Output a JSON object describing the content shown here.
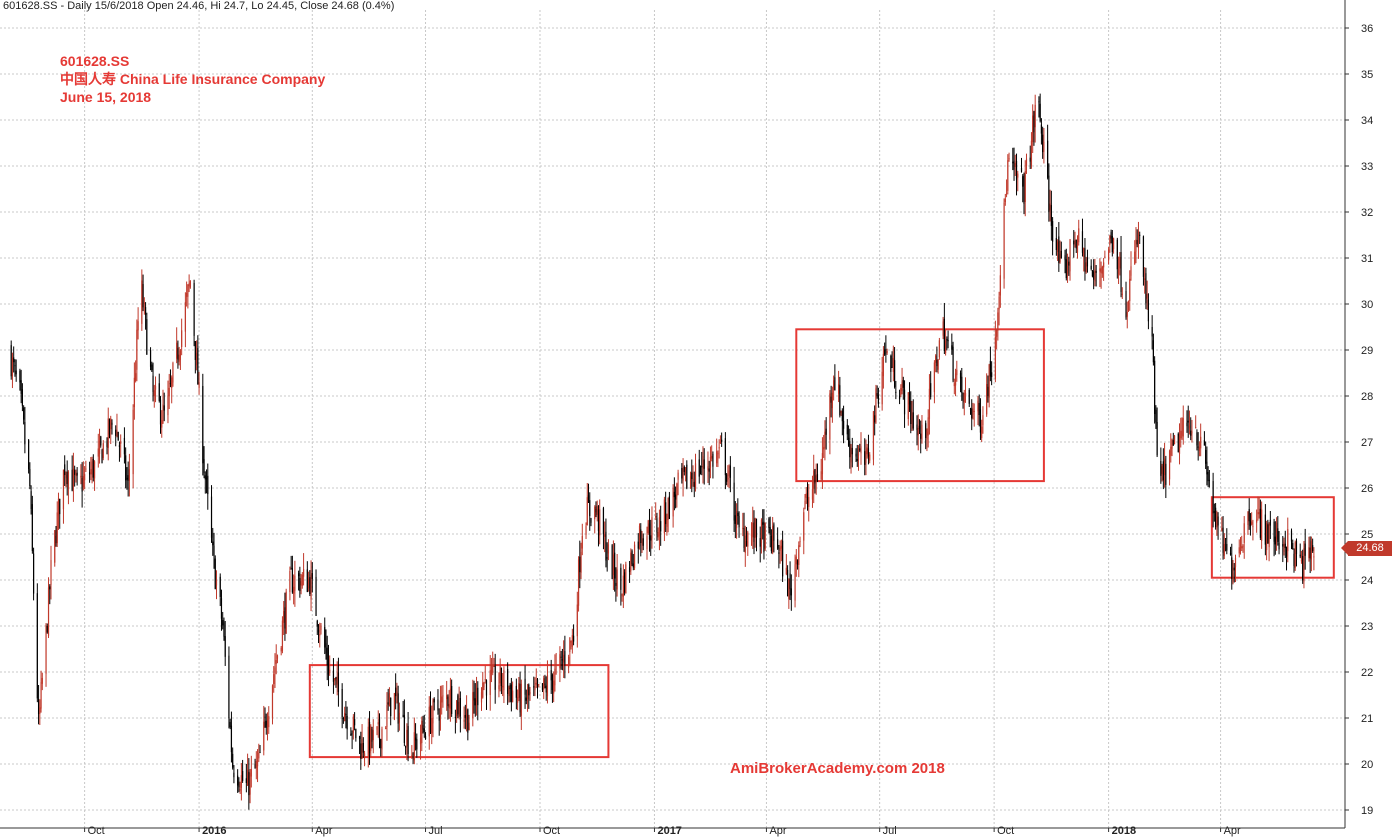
{
  "header": {
    "text": "601628.SS - Daily 15/6/2018 Open 24.46, Hi 24.7, Lo 24.45, Close 24.68 (0.4%)"
  },
  "annotation": {
    "symbol": "601628.SS",
    "company": "中国人寿 China Life Insurance Company",
    "date": "June 15, 2018"
  },
  "watermark": "AmiBrokerAcademy.com  2018",
  "last_price": "24.68",
  "colors": {
    "annotation": "#e53935",
    "up_candle": "#c0392b",
    "down_candle": "#000000",
    "box": "#e53935",
    "grid": "#c8c8c8"
  },
  "chart_data": {
    "type": "candlestick",
    "title": "",
    "xlabel": "",
    "ylabel": "",
    "ylim": [
      19,
      36
    ],
    "grid": true,
    "y_ticks": [
      19,
      20,
      21,
      22,
      23,
      24,
      25,
      26,
      27,
      28,
      29,
      30,
      31,
      32,
      33,
      34,
      35,
      36
    ],
    "x_ticks": [
      {
        "label": "Oct",
        "date": "2015-10",
        "year": false
      },
      {
        "label": "2016",
        "date": "2016-01",
        "year": true
      },
      {
        "label": "Apr",
        "date": "2016-04",
        "year": false
      },
      {
        "label": "Jul",
        "date": "2016-07",
        "year": false
      },
      {
        "label": "Oct",
        "date": "2016-10",
        "year": false
      },
      {
        "label": "2017",
        "date": "2017-01",
        "year": true
      },
      {
        "label": "Apr",
        "date": "2017-04",
        "year": false
      },
      {
        "label": "Jul",
        "date": "2017-07",
        "year": false
      },
      {
        "label": "Oct",
        "date": "2017-10",
        "year": false
      },
      {
        "label": "2018",
        "date": "2018-01",
        "year": true
      },
      {
        "label": "Apr",
        "date": "2018-04",
        "year": false
      }
    ],
    "x_range": [
      "2015-07-25",
      "2018-07-10"
    ],
    "series": [
      {
        "name": "601628.SS",
        "price_path": [
          [
            "2015-08-01",
            29.0
          ],
          [
            "2015-08-10",
            28.0
          ],
          [
            "2015-08-18",
            26.0
          ],
          [
            "2015-08-25",
            20.8
          ],
          [
            "2015-09-05",
            24.5
          ],
          [
            "2015-09-15",
            26.5
          ],
          [
            "2015-09-25",
            26.0
          ],
          [
            "2015-10-10",
            26.5
          ],
          [
            "2015-10-25",
            27.5
          ],
          [
            "2015-11-05",
            26.0
          ],
          [
            "2015-11-15",
            30.5
          ],
          [
            "2015-11-25",
            28.0
          ],
          [
            "2015-12-05",
            27.5
          ],
          [
            "2015-12-15",
            29.0
          ],
          [
            "2015-12-25",
            30.5
          ],
          [
            "2016-01-05",
            26.5
          ],
          [
            "2016-01-12",
            24.5
          ],
          [
            "2016-01-20",
            23.0
          ],
          [
            "2016-01-28",
            20.0
          ],
          [
            "2016-02-08",
            19.5
          ],
          [
            "2016-02-18",
            20.0
          ],
          [
            "2016-03-01",
            22.0
          ],
          [
            "2016-03-15",
            24.0
          ],
          [
            "2016-03-30",
            24.0
          ],
          [
            "2016-04-15",
            22.0
          ],
          [
            "2016-04-30",
            21.0
          ],
          [
            "2016-05-10",
            20.4
          ],
          [
            "2016-05-25",
            20.6
          ],
          [
            "2016-06-05",
            21.5
          ],
          [
            "2016-06-20",
            20.3
          ],
          [
            "2016-07-05",
            21.0
          ],
          [
            "2016-07-20",
            21.5
          ],
          [
            "2016-08-05",
            21.0
          ],
          [
            "2016-08-15",
            21.8
          ],
          [
            "2016-09-01",
            21.8
          ],
          [
            "2016-09-15",
            21.4
          ],
          [
            "2016-10-01",
            21.5
          ],
          [
            "2016-10-15",
            22.0
          ],
          [
            "2016-10-28",
            22.8
          ],
          [
            "2016-11-05",
            25.5
          ],
          [
            "2016-11-15",
            25.5
          ],
          [
            "2016-11-25",
            24.5
          ],
          [
            "2016-12-05",
            23.8
          ],
          [
            "2016-12-20",
            25.0
          ],
          [
            "2017-01-05",
            25.2
          ],
          [
            "2017-01-20",
            26.0
          ],
          [
            "2017-02-10",
            26.5
          ],
          [
            "2017-02-25",
            26.8
          ],
          [
            "2017-03-10",
            25.0
          ],
          [
            "2017-03-25",
            25.0
          ],
          [
            "2017-04-10",
            24.8
          ],
          [
            "2017-04-20",
            23.7
          ],
          [
            "2017-05-01",
            25.5
          ],
          [
            "2017-05-15",
            26.5
          ],
          [
            "2017-05-25",
            28.5
          ],
          [
            "2017-06-05",
            27.0
          ],
          [
            "2017-06-20",
            26.5
          ],
          [
            "2017-07-05",
            29.0
          ],
          [
            "2017-07-20",
            28.0
          ],
          [
            "2017-08-05",
            27.0
          ],
          [
            "2017-08-20",
            29.5
          ],
          [
            "2017-09-05",
            28.0
          ],
          [
            "2017-09-20",
            27.5
          ],
          [
            "2017-10-01",
            29.0
          ],
          [
            "2017-10-12",
            33.0
          ],
          [
            "2017-10-25",
            32.5
          ],
          [
            "2017-11-05",
            34.5
          ],
          [
            "2017-11-15",
            32.0
          ],
          [
            "2017-11-25",
            30.5
          ],
          [
            "2017-12-05",
            31.5
          ],
          [
            "2017-12-20",
            30.5
          ],
          [
            "2018-01-05",
            31.5
          ],
          [
            "2018-01-15",
            30.0
          ],
          [
            "2018-01-25",
            31.5
          ],
          [
            "2018-02-05",
            29.0
          ],
          [
            "2018-02-10",
            26.0
          ],
          [
            "2018-02-25",
            27.0
          ],
          [
            "2018-03-10",
            27.5
          ],
          [
            "2018-03-20",
            26.5
          ],
          [
            "2018-03-30",
            25.0
          ],
          [
            "2018-04-10",
            24.3
          ],
          [
            "2018-04-25",
            25.5
          ],
          [
            "2018-05-10",
            25.0
          ],
          [
            "2018-05-25",
            24.8
          ],
          [
            "2018-06-05",
            24.3
          ],
          [
            "2018-06-15",
            24.68
          ]
        ]
      }
    ],
    "annotations": {
      "boxes": [
        {
          "x0": "2016-03-30",
          "x1": "2016-11-25",
          "y0": 20.15,
          "y1": 22.15
        },
        {
          "x0": "2017-04-25",
          "x1": "2017-11-10",
          "y0": 26.15,
          "y1": 29.45
        },
        {
          "x0": "2018-03-25",
          "x1": "2018-07-01",
          "y0": 24.05,
          "y1": 25.8
        }
      ]
    }
  }
}
